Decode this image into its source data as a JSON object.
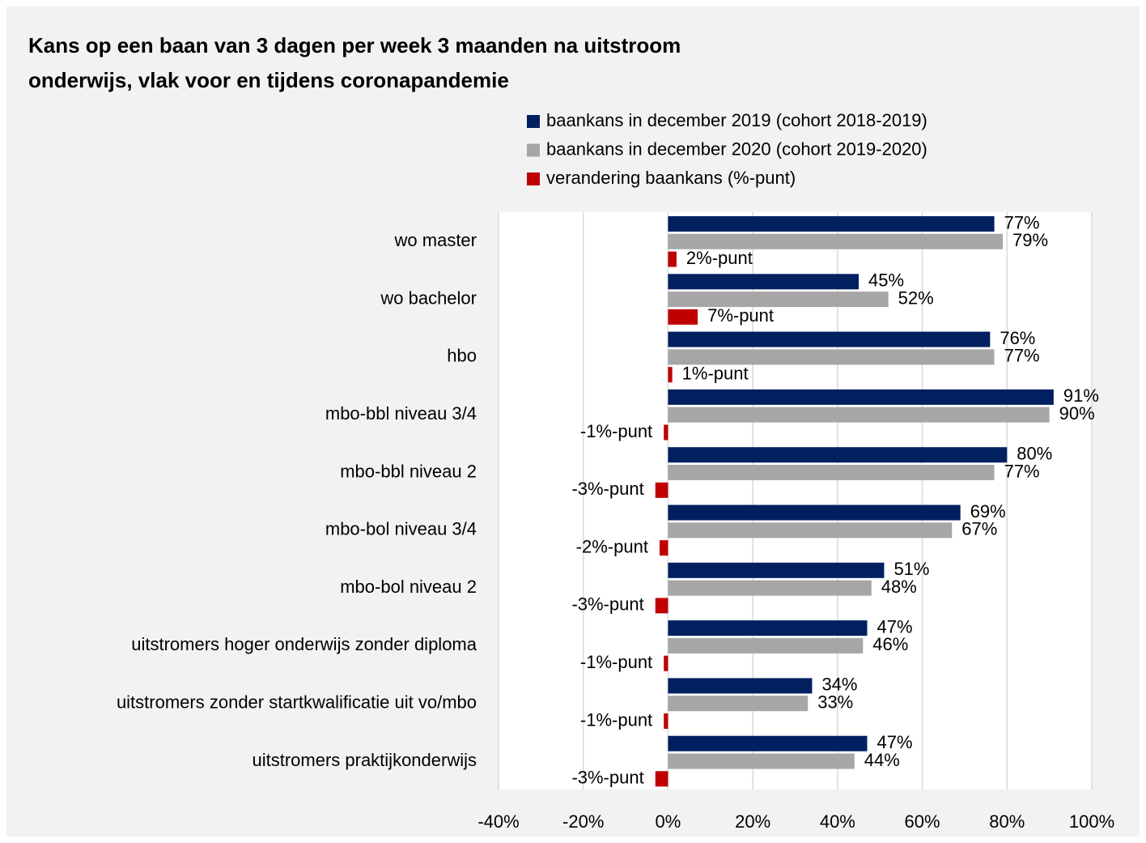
{
  "chart_data": {
    "type": "bar",
    "orientation": "horizontal",
    "title": [
      "Kans op een baan van 3 dagen per week 3 maanden na uitstroom",
      "onderwijs, vlak voor en tijdens coronapandemie"
    ],
    "categories": [
      "wo master",
      "wo bachelor",
      "hbo",
      "mbo-bbl niveau 3/4",
      "mbo-bbl niveau 2",
      "mbo-bol niveau 3/4",
      "mbo-bol niveau 2",
      "uitstromers hoger onderwijs zonder diploma",
      "uitstromers zonder startkwalificatie uit vo/mbo",
      "uitstromers praktijkonderwijs"
    ],
    "series": [
      {
        "name": "baankans in december 2019 (cohort 2018-2019)",
        "color": "#002060",
        "values": [
          77,
          45,
          76,
          91,
          80,
          69,
          51,
          47,
          34,
          47
        ],
        "value_labels": [
          "77%",
          "45%",
          "76%",
          "91%",
          "80%",
          "69%",
          "51%",
          "47%",
          "34%",
          "47%"
        ]
      },
      {
        "name": "baankans in december 2020 (cohort 2019-2020)",
        "color": "#a6a6a6",
        "values": [
          79,
          52,
          77,
          90,
          77,
          67,
          48,
          46,
          33,
          44
        ],
        "value_labels": [
          "79%",
          "52%",
          "77%",
          "90%",
          "77%",
          "67%",
          "48%",
          "46%",
          "33%",
          "44%"
        ]
      },
      {
        "name": "verandering baankans (%-punt)",
        "color": "#c00000",
        "values": [
          2,
          7,
          1,
          -1,
          -3,
          -2,
          -3,
          -1,
          -1,
          -3
        ],
        "value_labels": [
          "2%-punt",
          "7%-punt",
          "1%-punt",
          "-1%-punt",
          "-3%-punt",
          "-2%-punt",
          "-3%-punt",
          "-1%-punt",
          "-1%-punt",
          "-3%-punt"
        ]
      }
    ],
    "xlim": [
      -40,
      100
    ],
    "xticks": [
      {
        "value": -40,
        "label": "-40%"
      },
      {
        "value": -20,
        "label": "-20%"
      },
      {
        "value": 0,
        "label": "0%"
      },
      {
        "value": 20,
        "label": "20%"
      },
      {
        "value": 40,
        "label": "40%"
      },
      {
        "value": 60,
        "label": "60%"
      },
      {
        "value": 80,
        "label": "80%"
      },
      {
        "value": 100,
        "label": "100%"
      }
    ],
    "grid": true,
    "legend": "top"
  }
}
